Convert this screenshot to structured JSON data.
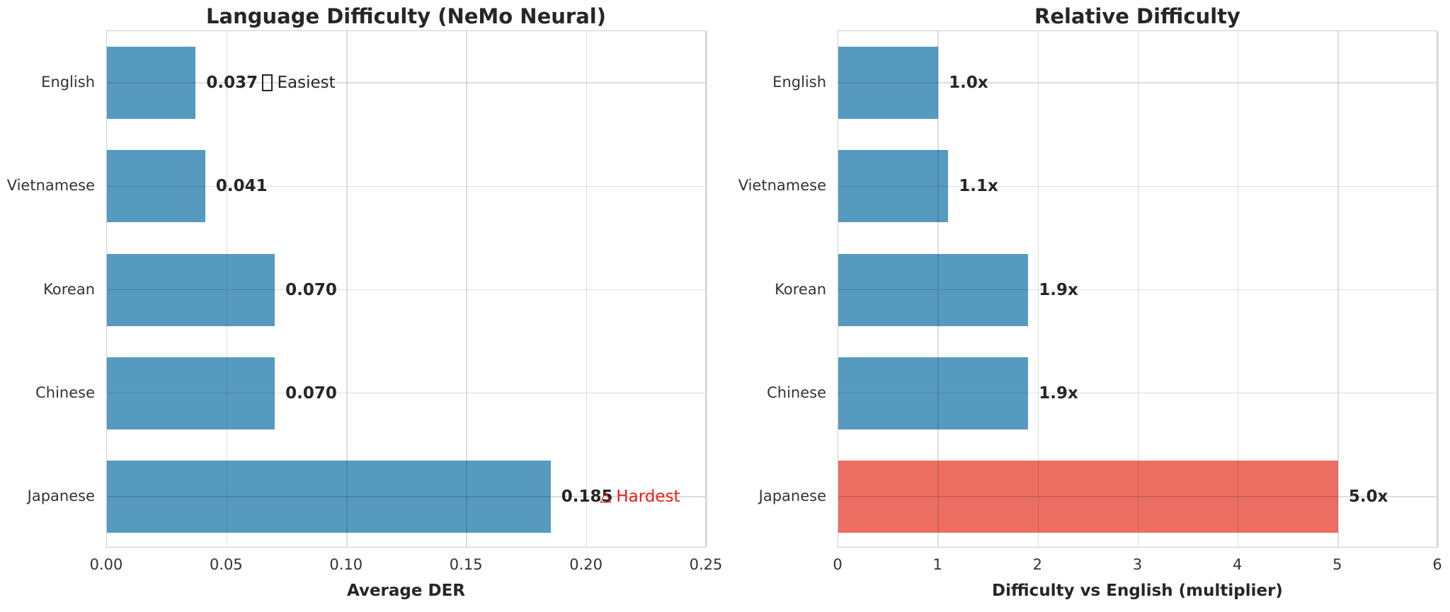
{
  "palette": {
    "bar_blue": "#569ac0",
    "bar_red": "#ed6f63",
    "annotation_red": "#ed1c16",
    "text_dark": "#262626",
    "tick_text": "#333333",
    "grid": "#dcdcdc"
  },
  "chart_data": [
    {
      "type": "bar",
      "orientation": "horizontal",
      "title": "Language Difficulty (NeMo Neural)",
      "xlabel": "Average DER",
      "categories": [
        "English",
        "Vietnamese",
        "Korean",
        "Chinese",
        "Japanese"
      ],
      "values": [
        0.037,
        0.041,
        0.07,
        0.07,
        0.185
      ],
      "value_labels": [
        "0.037",
        "0.041",
        "0.070",
        "0.070",
        "0.185"
      ],
      "xlim": [
        0,
        0.25
      ],
      "xtick_values": [
        0,
        0.05,
        0.1,
        0.15,
        0.2,
        0.25
      ],
      "xtick_labels": [
        "0.00",
        "0.05",
        "0.10",
        "0.15",
        "0.20",
        "0.25"
      ],
      "grid": true,
      "legend": "none",
      "bar_colors": [
        "#569ac0",
        "#569ac0",
        "#569ac0",
        "#569ac0",
        "#569ac0"
      ],
      "annotations": [
        {
          "row": 0,
          "x": 0.0645,
          "icon": "missing-glyph",
          "text": "Easiest",
          "color": "#262626"
        },
        {
          "row": 4,
          "x": 0.2055,
          "icon": "warning-triangle",
          "text": "Hardest",
          "color": "#ed1c16"
        }
      ]
    },
    {
      "type": "bar",
      "orientation": "horizontal",
      "title": "Relative Difficulty",
      "xlabel": "Difficulty vs English (multiplier)",
      "categories": [
        "English",
        "Vietnamese",
        "Korean",
        "Chinese",
        "Japanese"
      ],
      "values": [
        1.0,
        1.1,
        1.9,
        1.9,
        5.0
      ],
      "value_labels": [
        "1.0x",
        "1.1x",
        "1.9x",
        "1.9x",
        "5.0x"
      ],
      "xlim": [
        0,
        6
      ],
      "xtick_values": [
        0,
        1,
        2,
        3,
        4,
        5,
        6
      ],
      "xtick_labels": [
        "0",
        "1",
        "2",
        "3",
        "4",
        "5",
        "6"
      ],
      "grid": true,
      "legend": "none",
      "bar_colors": [
        "#569ac0",
        "#569ac0",
        "#569ac0",
        "#569ac0",
        "#ed6f63"
      ],
      "annotations": []
    }
  ]
}
